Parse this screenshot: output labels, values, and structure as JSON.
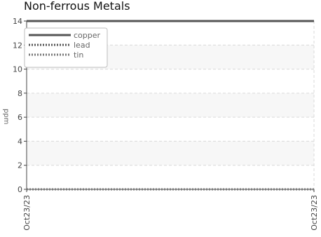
{
  "chart_data": {
    "type": "line",
    "title": "Non-ferrous Metals",
    "xlabel": "",
    "ylabel": "ppm",
    "ylim": [
      0,
      14
    ],
    "yticks": [
      0,
      2,
      4,
      6,
      8,
      10,
      12,
      14
    ],
    "x": [
      "Oct23/23",
      "Oct23/23"
    ],
    "grid": true,
    "legend_position": "top-left",
    "series": [
      {
        "name": "copper",
        "values": [
          14,
          14
        ],
        "color": "#555555",
        "style": "solid"
      },
      {
        "name": "lead",
        "values": [
          0,
          0
        ],
        "color": "#555555",
        "style": "dotted"
      },
      {
        "name": "tin",
        "values": [
          0,
          0
        ],
        "color": "#777777",
        "style": "dotted"
      }
    ],
    "colors": {
      "band": "#f7f7f7",
      "grid": "#d9d9d9",
      "axis": "#444444"
    }
  }
}
